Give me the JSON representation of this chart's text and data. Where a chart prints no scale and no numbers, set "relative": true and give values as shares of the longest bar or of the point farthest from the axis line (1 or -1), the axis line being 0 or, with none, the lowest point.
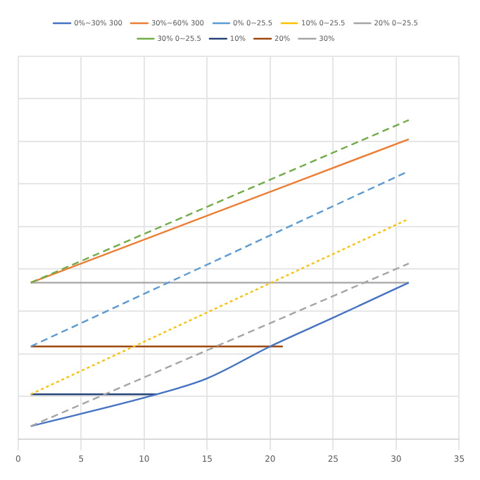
{
  "chart_data": {
    "type": "line",
    "relative": true,
    "xlim": [
      0,
      35
    ],
    "xticks": [
      0,
      5,
      10,
      15,
      20,
      25,
      30,
      35
    ],
    "grid": true,
    "legend": "top",
    "marker": "none",
    "series": [
      {
        "name": "0%~30% 300",
        "color": "#4472c4",
        "line_style": "solid",
        "x": [
          1,
          11,
          15,
          20,
          25,
          31
        ],
        "values": [
          0.04,
          0.14,
          0.19,
          0.29,
          0.38,
          0.49
        ]
      },
      {
        "name": "30%~60% 300",
        "color": "#ed7d31",
        "line_style": "solid",
        "x": [
          1,
          31
        ],
        "values": [
          0.49,
          0.94
        ]
      },
      {
        "name": "0% 0~25.5",
        "color": "#5b9bd5",
        "line_style": "dashed",
        "x": [
          1,
          31
        ],
        "values": [
          0.29,
          0.84
        ]
      },
      {
        "name": "10% 0~25.5",
        "color": "#ffc000",
        "line_style": "dotted",
        "x": [
          1,
          31
        ],
        "values": [
          0.14,
          0.69
        ]
      },
      {
        "name": "20% 0~25.5",
        "color": "#a5a5a5",
        "line_style": "dashed",
        "x": [
          1,
          31
        ],
        "values": [
          0.04,
          0.55
        ]
      },
      {
        "name": "30% 0~25.5",
        "color": "#70ad47",
        "line_style": "dashed",
        "x": [
          1,
          31
        ],
        "values": [
          0.49,
          1.0
        ]
      },
      {
        "name": "10%",
        "color": "#264478",
        "line_style": "solid",
        "x": [
          1,
          11
        ],
        "values": [
          0.14,
          0.14
        ]
      },
      {
        "name": "20%",
        "color": "#9e480e",
        "line_style": "solid",
        "x": [
          1,
          21
        ],
        "values": [
          0.29,
          0.29
        ]
      },
      {
        "name": "30%",
        "color": "#a5a5a5",
        "line_style": "solid",
        "x": [
          1,
          31
        ],
        "values": [
          0.49,
          0.49
        ]
      }
    ]
  }
}
